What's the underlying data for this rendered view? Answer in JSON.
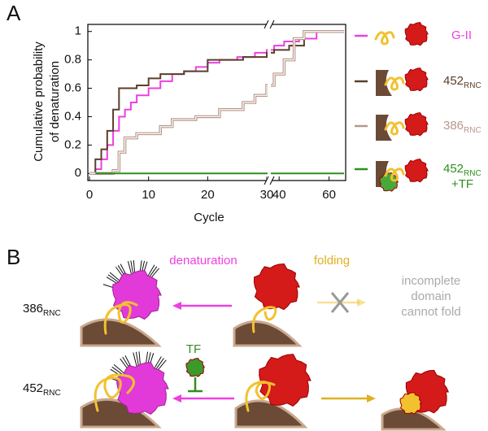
{
  "panel_a": {
    "label": "A"
  },
  "chart_data": {
    "type": "line",
    "step": "post",
    "y_label": [
      "Cumulative probability",
      "of denaturation"
    ],
    "x_label": "Cycle",
    "ylim": [
      -0.05,
      1.05
    ],
    "yticks": [
      0,
      0.2,
      0.4,
      0.6,
      0.8,
      1
    ],
    "x_segments": [
      {
        "xlim": [
          0,
          30
        ],
        "xticks": [
          0,
          10,
          20,
          30
        ]
      },
      {
        "xlim": [
          37,
          66
        ],
        "xticks": [
          40,
          60
        ]
      }
    ],
    "series": [
      {
        "name": "G-II",
        "color": "#ee40e0",
        "x": [
          0,
          1,
          2,
          3,
          4,
          5,
          6,
          7,
          8,
          10,
          12,
          14,
          16,
          18,
          20,
          22,
          25,
          28,
          30,
          38,
          42,
          48,
          55,
          66
        ],
        "values": [
          0,
          0.03,
          0.1,
          0.2,
          0.3,
          0.4,
          0.45,
          0.5,
          0.55,
          0.6,
          0.65,
          0.7,
          0.72,
          0.75,
          0.78,
          0.8,
          0.82,
          0.85,
          0.87,
          0.9,
          0.93,
          0.95,
          1,
          1
        ]
      },
      {
        "name": "452",
        "sub": "RNC",
        "color": "#5b3f2a",
        "x": [
          0,
          1,
          2,
          3,
          4,
          5,
          8,
          10,
          12,
          16,
          20,
          26,
          30,
          38,
          44,
          50,
          66
        ],
        "values": [
          0,
          0.1,
          0.17,
          0.3,
          0.45,
          0.6,
          0.62,
          0.67,
          0.7,
          0.72,
          0.8,
          0.82,
          0.85,
          0.87,
          0.9,
          1,
          1
        ]
      },
      {
        "name": "386",
        "sub": "RNC",
        "color": "#b8978a",
        "double": true,
        "x": [
          0,
          4,
          5,
          6,
          8,
          12,
          14,
          18,
          22,
          26,
          28,
          30,
          38,
          42,
          46,
          50,
          66
        ],
        "values": [
          0,
          0.02,
          0.15,
          0.25,
          0.28,
          0.33,
          0.38,
          0.4,
          0.45,
          0.5,
          0.55,
          0.62,
          0.7,
          0.8,
          0.95,
          1,
          1
        ]
      },
      {
        "name": "452",
        "sub": "RNC",
        "extra": "+TF",
        "color": "#2f8f1f",
        "x": [
          1,
          66
        ],
        "values": [
          0,
          0
        ]
      }
    ]
  },
  "panel_b": {
    "label": "B",
    "denaturation": "denaturation",
    "folding": "folding",
    "blocked": [
      "incomplete",
      "domain",
      "cannot fold"
    ],
    "tf": "TF",
    "rows": [
      {
        "name": "386",
        "sub": "RNC"
      },
      {
        "name": "452",
        "sub": "RNC"
      }
    ]
  }
}
